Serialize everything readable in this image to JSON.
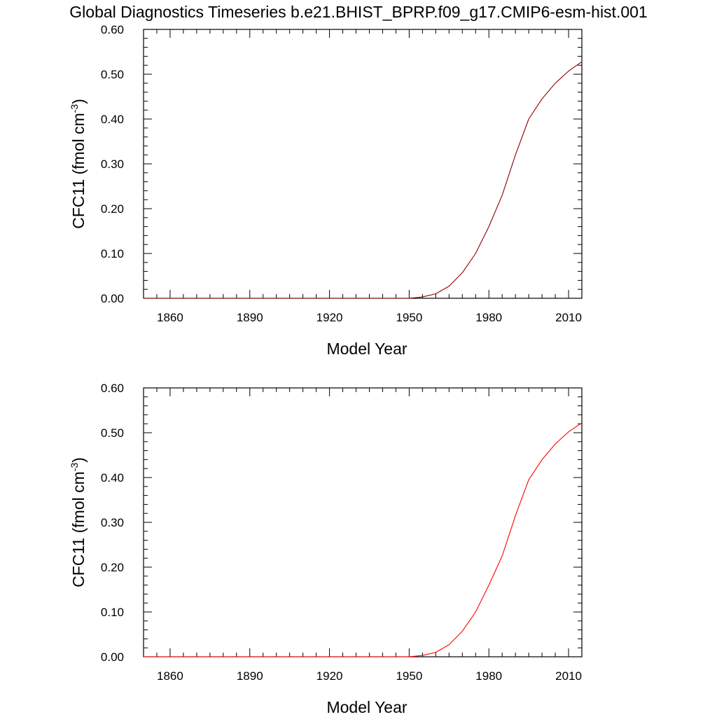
{
  "figure_title": "Global Diagnostics Timeseries b.e21.BHIST_BPRP.f09_g17.CMIP6-esm-hist.001",
  "colors": {
    "background": "#ffffff",
    "axes": "#000000"
  },
  "chart_data": [
    {
      "type": "line",
      "title": "",
      "xlabel": "Model Year",
      "ylabel": "CFC11 (fmol cm",
      "ylabel_superscript": "-3",
      "ylabel_suffix": ")",
      "xlim": [
        1850,
        2015
      ],
      "ylim": [
        0.0,
        0.6
      ],
      "x_ticks": [
        1860,
        1890,
        1920,
        1950,
        1980,
        2010
      ],
      "x_tick_labels": [
        "1860",
        "1890",
        "1920",
        "1950",
        "1980",
        "2010"
      ],
      "y_ticks": [
        0.0,
        0.1,
        0.2,
        0.3,
        0.4,
        0.5,
        0.6
      ],
      "y_tick_labels": [
        "0.00",
        "0.10",
        "0.20",
        "0.30",
        "0.40",
        "0.50",
        "0.60"
      ],
      "grid": false,
      "series": [
        {
          "color": "#8b0000",
          "x": [
            1850,
            1950,
            1955,
            1960,
            1965,
            1970,
            1975,
            1980,
            1985,
            1990,
            1995,
            2000,
            2005,
            2010,
            2015
          ],
          "y": [
            0.0,
            0.0,
            0.003,
            0.01,
            0.027,
            0.057,
            0.1,
            0.16,
            0.23,
            0.32,
            0.4,
            0.445,
            0.48,
            0.507,
            0.528
          ]
        }
      ]
    },
    {
      "type": "line",
      "title": "",
      "xlabel": "Model Year",
      "ylabel": "CFC11 (fmol cm",
      "ylabel_superscript": "-3",
      "ylabel_suffix": ")",
      "xlim": [
        1850,
        2015
      ],
      "ylim": [
        0.0,
        0.6
      ],
      "x_ticks": [
        1860,
        1890,
        1920,
        1950,
        1980,
        2010
      ],
      "x_tick_labels": [
        "1860",
        "1890",
        "1920",
        "1950",
        "1980",
        "2010"
      ],
      "y_ticks": [
        0.0,
        0.1,
        0.2,
        0.3,
        0.4,
        0.5,
        0.6
      ],
      "y_tick_labels": [
        "0.00",
        "0.10",
        "0.20",
        "0.30",
        "0.40",
        "0.50",
        "0.60"
      ],
      "grid": false,
      "series": [
        {
          "color": "#ff0000",
          "x": [
            1850,
            1950,
            1955,
            1960,
            1965,
            1970,
            1975,
            1980,
            1985,
            1990,
            1995,
            2000,
            2005,
            2010,
            2015
          ],
          "y": [
            0.0,
            0.0,
            0.003,
            0.01,
            0.027,
            0.057,
            0.1,
            0.16,
            0.225,
            0.315,
            0.395,
            0.44,
            0.475,
            0.502,
            0.522
          ]
        }
      ]
    }
  ]
}
